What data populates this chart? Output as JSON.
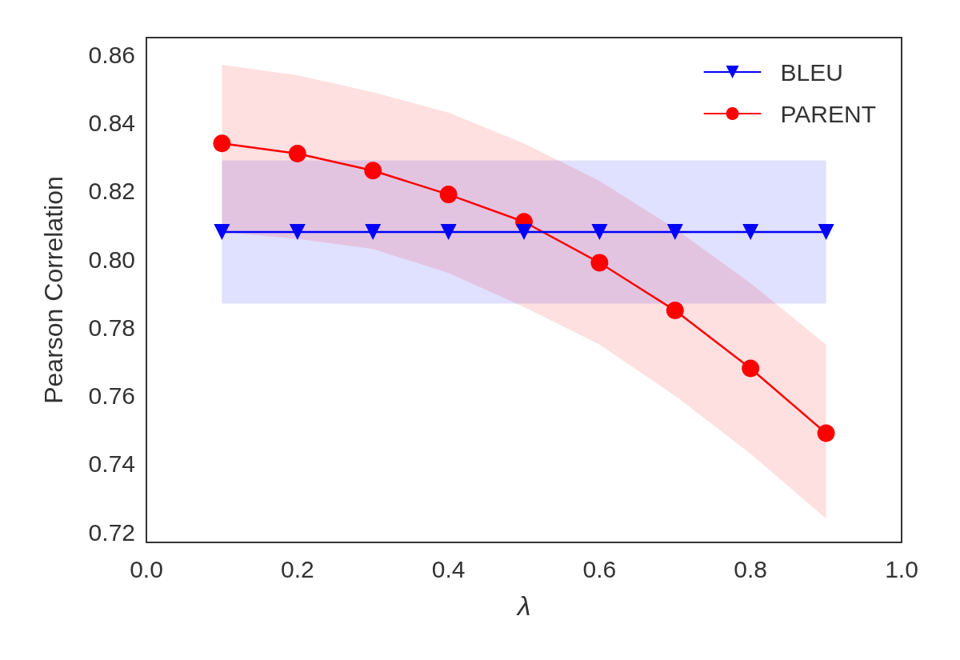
{
  "chart_data": {
    "type": "line",
    "xlabel": "λ",
    "ylabel": "Pearson Correlation",
    "xlim": [
      0,
      1
    ],
    "xticks": [
      {
        "value": 0,
        "label": "0.0"
      },
      {
        "value": 0.2,
        "label": "0.2"
      },
      {
        "value": 0.4,
        "label": "0.4"
      },
      {
        "value": 0.6,
        "label": "0.6"
      },
      {
        "value": 0.8,
        "label": "0.8"
      },
      {
        "value": 1,
        "label": "1.0"
      }
    ],
    "ylim": [
      0.717,
      0.865
    ],
    "yticks": [
      {
        "value": 0.72,
        "label": "0.72"
      },
      {
        "value": 0.74,
        "label": "0.74"
      },
      {
        "value": 0.76,
        "label": "0.76"
      },
      {
        "value": 0.78,
        "label": "0.78"
      },
      {
        "value": 0.8,
        "label": "0.80"
      },
      {
        "value": 0.82,
        "label": "0.82"
      },
      {
        "value": 0.84,
        "label": "0.84"
      },
      {
        "value": 0.86,
        "label": "0.86"
      }
    ],
    "x": [
      0.1,
      0.2,
      0.3,
      0.4,
      0.5,
      0.6,
      0.7,
      0.8,
      0.9
    ],
    "series": [
      {
        "name": "BLEU",
        "color": "#0000ff",
        "marker": "triangle",
        "values": [
          0.808,
          0.808,
          0.808,
          0.808,
          0.808,
          0.808,
          0.808,
          0.808,
          0.808
        ],
        "lower": [
          0.787,
          0.787,
          0.787,
          0.787,
          0.787,
          0.787,
          0.787,
          0.787,
          0.787
        ],
        "upper": [
          0.829,
          0.829,
          0.829,
          0.829,
          0.829,
          0.829,
          0.829,
          0.829,
          0.829
        ]
      },
      {
        "name": "PARENT",
        "color": "#ff0000",
        "marker": "circle",
        "values": [
          0.834,
          0.831,
          0.826,
          0.819,
          0.811,
          0.799,
          0.785,
          0.768,
          0.749
        ],
        "lower": [
          0.808,
          0.806,
          0.803,
          0.796,
          0.786,
          0.775,
          0.76,
          0.743,
          0.724
        ],
        "upper": [
          0.857,
          0.854,
          0.849,
          0.843,
          0.834,
          0.823,
          0.809,
          0.793,
          0.775
        ]
      }
    ],
    "legend": "top right",
    "grid": false,
    "line_style": "solid"
  }
}
